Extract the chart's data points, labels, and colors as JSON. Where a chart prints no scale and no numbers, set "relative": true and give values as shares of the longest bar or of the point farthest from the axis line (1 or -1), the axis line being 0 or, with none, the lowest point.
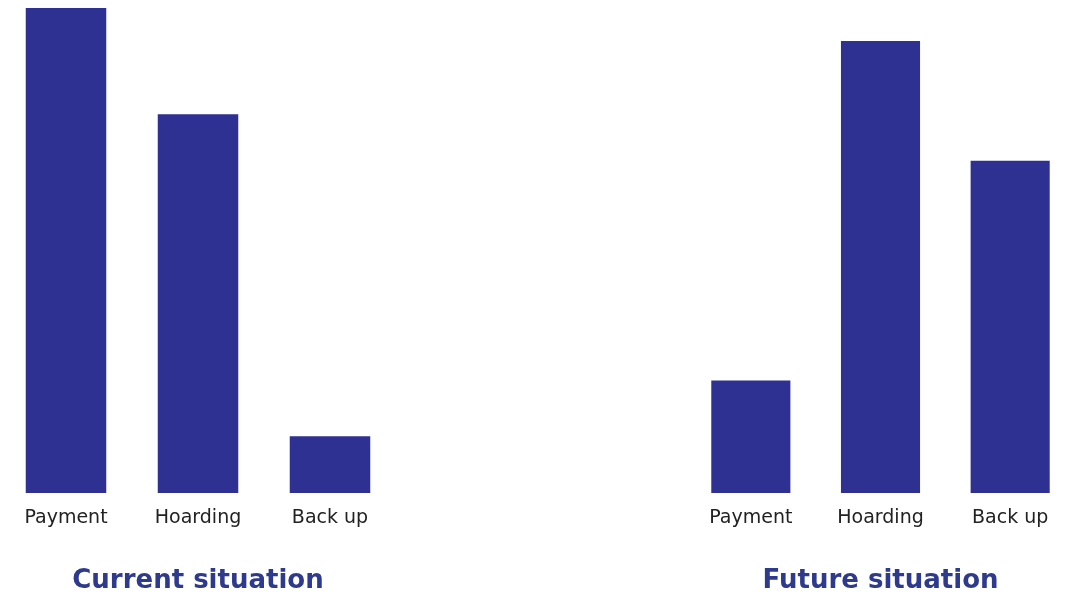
{
  "chart_data": [
    {
      "type": "bar",
      "title": "Current situation",
      "categories": [
        "Payment",
        "Hoarding",
        "Back up"
      ],
      "values": [
        1,
        0.781,
        0.117
      ],
      "color": "#2e3192",
      "relative": true,
      "grid": false,
      "legend": false
    },
    {
      "type": "bar",
      "title": "Future situation",
      "categories": [
        "Payment",
        "Hoarding",
        "Back up"
      ],
      "values": [
        0.249,
        1,
        0.735
      ],
      "color": "#2e3192",
      "relative": true,
      "grid": false,
      "legend": false
    }
  ]
}
